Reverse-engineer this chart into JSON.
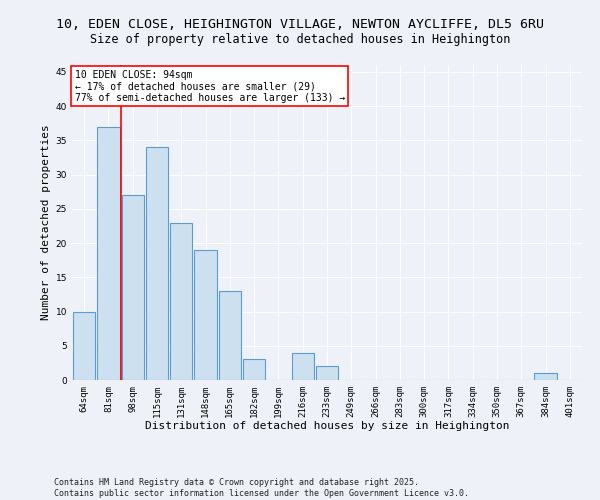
{
  "title1": "10, EDEN CLOSE, HEIGHINGTON VILLAGE, NEWTON AYCLIFFE, DL5 6RU",
  "title2": "Size of property relative to detached houses in Heighington",
  "xlabel": "Distribution of detached houses by size in Heighington",
  "ylabel": "Number of detached properties",
  "categories": [
    "64sqm",
    "81sqm",
    "98sqm",
    "115sqm",
    "131sqm",
    "148sqm",
    "165sqm",
    "182sqm",
    "199sqm",
    "216sqm",
    "233sqm",
    "249sqm",
    "266sqm",
    "283sqm",
    "300sqm",
    "317sqm",
    "334sqm",
    "350sqm",
    "367sqm",
    "384sqm",
    "401sqm"
  ],
  "values": [
    10,
    37,
    27,
    34,
    23,
    19,
    13,
    3,
    0,
    4,
    2,
    0,
    0,
    0,
    0,
    0,
    0,
    0,
    0,
    1,
    0
  ],
  "bar_color": "#cce0f0",
  "bar_edge_color": "#5b9bd5",
  "bar_edge_width": 0.8,
  "vline_x": 1.5,
  "vline_color": "red",
  "vline_linewidth": 1.2,
  "ylim": [
    0,
    46
  ],
  "yticks": [
    0,
    5,
    10,
    15,
    20,
    25,
    30,
    35,
    40,
    45
  ],
  "annotation_title": "10 EDEN CLOSE: 94sqm",
  "annotation_line1": "← 17% of detached houses are smaller (29)",
  "annotation_line2": "77% of semi-detached houses are larger (133) →",
  "annotation_box_color": "white",
  "annotation_box_edge": "red",
  "copyright_text": "Contains HM Land Registry data © Crown copyright and database right 2025.\nContains public sector information licensed under the Open Government Licence v3.0.",
  "background_color": "#eef2f8",
  "grid_color": "white",
  "title_fontsize": 9.5,
  "subtitle_fontsize": 8.5,
  "axis_label_fontsize": 8,
  "tick_fontsize": 6.5,
  "annotation_fontsize": 7,
  "copyright_fontsize": 6
}
